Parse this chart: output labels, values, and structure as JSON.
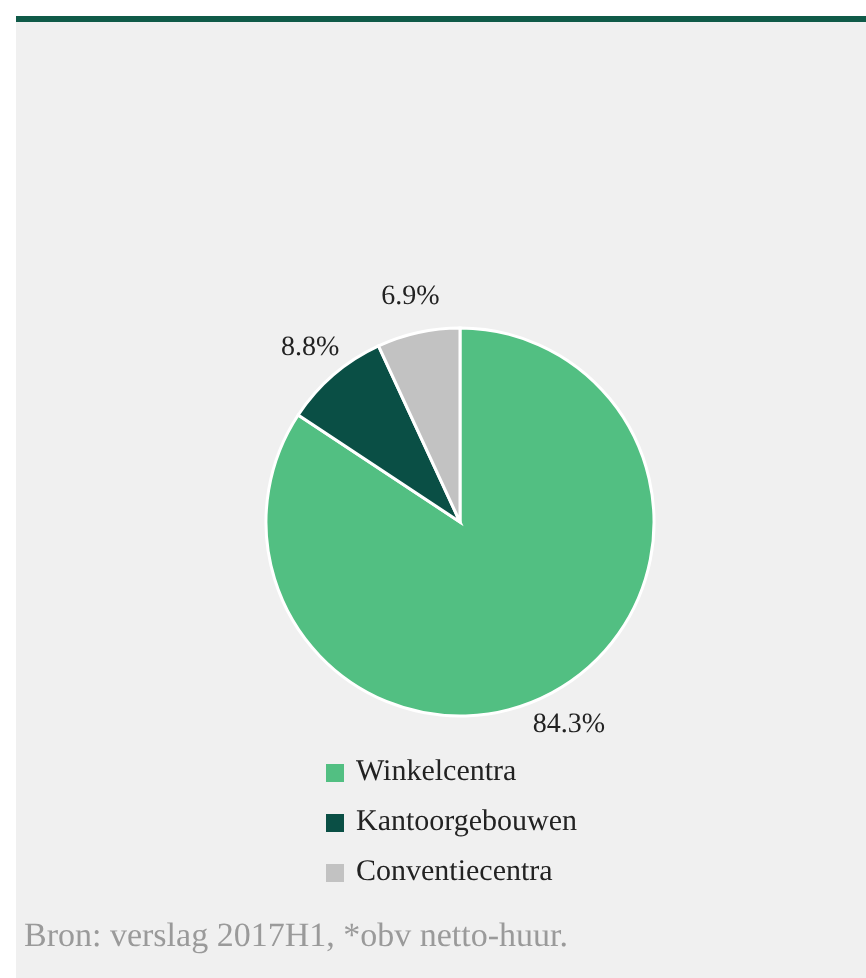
{
  "chart_data": {
    "type": "pie",
    "categories": [
      "Winkelcentra",
      "Kantoorgebouwen",
      "Conventiecentra"
    ],
    "values": [
      84.3,
      8.8,
      6.9
    ],
    "colors": [
      "#52bf82",
      "#0a4f45",
      "#c2c2c2"
    ],
    "value_labels": [
      "84.3%",
      "8.8%",
      "6.9%"
    ],
    "legend": "bottom",
    "annotations": [
      "Bron: verslag 2017H1, *obv netto-huur."
    ]
  }
}
